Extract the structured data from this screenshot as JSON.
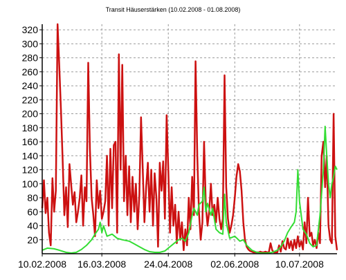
{
  "chart_data": {
    "type": "line",
    "title": "Transit Häuserstärken (10.02.2008 - 01.08.2008)",
    "xlabel": "",
    "ylabel": "",
    "xlim": [
      "2008-02-10",
      "2008-08-01"
    ],
    "ylim": [
      0,
      328
    ],
    "grid": true,
    "legend": "none",
    "y_ticks": [
      20,
      40,
      60,
      80,
      100,
      120,
      140,
      160,
      180,
      200,
      220,
      240,
      260,
      280,
      300,
      320
    ],
    "x_ticks": [
      "10.02.2008",
      "16.03.2008",
      "24.04.2008",
      "02.06.2008",
      "10.07.2008"
    ],
    "x_tick_dates": [
      "2008-02-10",
      "2008-03-16",
      "2008-04-24",
      "2008-06-02",
      "2008-07-10"
    ],
    "series": [
      {
        "color": "#cc1111",
        "points": [
          [
            "2008-02-10",
            65
          ],
          [
            "2008-02-11",
            105
          ],
          [
            "2008-02-12",
            58
          ],
          [
            "2008-02-13",
            80
          ],
          [
            "2008-02-14",
            30
          ],
          [
            "2008-02-15",
            12
          ],
          [
            "2008-02-16",
            108
          ],
          [
            "2008-02-17",
            60
          ],
          [
            "2008-02-18",
            90
          ],
          [
            "2008-02-19",
            328
          ],
          [
            "2008-02-20",
            270
          ],
          [
            "2008-02-21",
            205
          ],
          [
            "2008-02-22",
            135
          ],
          [
            "2008-02-23",
            55
          ],
          [
            "2008-02-24",
            95
          ],
          [
            "2008-02-25",
            38
          ],
          [
            "2008-02-26",
            128
          ],
          [
            "2008-02-27",
            98
          ],
          [
            "2008-02-28",
            70
          ],
          [
            "2008-02-29",
            88
          ],
          [
            "2008-03-01",
            45
          ],
          [
            "2008-03-02",
            60
          ],
          [
            "2008-03-03",
            80
          ],
          [
            "2008-03-04",
            112
          ],
          [
            "2008-03-05",
            40
          ],
          [
            "2008-03-06",
            95
          ],
          [
            "2008-03-07",
            75
          ],
          [
            "2008-03-08",
            273
          ],
          [
            "2008-03-09",
            150
          ],
          [
            "2008-03-10",
            80
          ],
          [
            "2008-03-11",
            55
          ],
          [
            "2008-03-12",
            25
          ],
          [
            "2008-03-13",
            105
          ],
          [
            "2008-03-14",
            65
          ],
          [
            "2008-03-15",
            90
          ],
          [
            "2008-03-16",
            50
          ],
          [
            "2008-03-17",
            60
          ],
          [
            "2008-03-18",
            75
          ],
          [
            "2008-03-19",
            140
          ],
          [
            "2008-03-20",
            40
          ],
          [
            "2008-03-21",
            150
          ],
          [
            "2008-03-22",
            65
          ],
          [
            "2008-03-23",
            155
          ],
          [
            "2008-03-24",
            160
          ],
          [
            "2008-03-25",
            30
          ],
          [
            "2008-03-26",
            285
          ],
          [
            "2008-03-27",
            120
          ],
          [
            "2008-03-28",
            270
          ],
          [
            "2008-03-29",
            75
          ],
          [
            "2008-03-30",
            140
          ],
          [
            "2008-03-31",
            55
          ],
          [
            "2008-04-01",
            125
          ],
          [
            "2008-04-02",
            45
          ],
          [
            "2008-04-03",
            110
          ],
          [
            "2008-04-04",
            60
          ],
          [
            "2008-04-05",
            100
          ],
          [
            "2008-04-06",
            35
          ],
          [
            "2008-04-07",
            85
          ],
          [
            "2008-04-08",
            195
          ],
          [
            "2008-04-09",
            120
          ],
          [
            "2008-04-10",
            45
          ],
          [
            "2008-04-11",
            95
          ],
          [
            "2008-04-12",
            130
          ],
          [
            "2008-04-13",
            60
          ],
          [
            "2008-04-14",
            120
          ],
          [
            "2008-04-15",
            40
          ],
          [
            "2008-04-16",
            115
          ],
          [
            "2008-04-17",
            80
          ],
          [
            "2008-04-18",
            10
          ],
          [
            "2008-04-19",
            130
          ],
          [
            "2008-04-20",
            90
          ],
          [
            "2008-04-21",
            132
          ],
          [
            "2008-04-22",
            50
          ],
          [
            "2008-04-23",
            198
          ],
          [
            "2008-04-24",
            120
          ],
          [
            "2008-04-25",
            30
          ],
          [
            "2008-04-26",
            95
          ],
          [
            "2008-04-27",
            40
          ],
          [
            "2008-04-28",
            70
          ],
          [
            "2008-04-29",
            15
          ],
          [
            "2008-04-30",
            60
          ],
          [
            "2008-05-01",
            20
          ],
          [
            "2008-05-02",
            45
          ],
          [
            "2008-05-03",
            5
          ],
          [
            "2008-05-04",
            35
          ],
          [
            "2008-05-05",
            12
          ],
          [
            "2008-05-06",
            80
          ],
          [
            "2008-05-07",
            35
          ],
          [
            "2008-05-08",
            110
          ],
          [
            "2008-05-09",
            55
          ],
          [
            "2008-05-10",
            275
          ],
          [
            "2008-05-11",
            140
          ],
          [
            "2008-05-12",
            60
          ],
          [
            "2008-05-13",
            20
          ],
          [
            "2008-05-14",
            45
          ],
          [
            "2008-05-15",
            160
          ],
          [
            "2008-05-16",
            70
          ],
          [
            "2008-05-17",
            40
          ],
          [
            "2008-05-18",
            60
          ],
          [
            "2008-05-19",
            100
          ],
          [
            "2008-05-20",
            55
          ],
          [
            "2008-05-21",
            70
          ],
          [
            "2008-05-22",
            45
          ],
          [
            "2008-05-23",
            80
          ],
          [
            "2008-05-24",
            50
          ],
          [
            "2008-05-25",
            35
          ],
          [
            "2008-05-26",
            50
          ],
          [
            "2008-05-27",
            255
          ],
          [
            "2008-05-28",
            95
          ],
          [
            "2008-05-29",
            50
          ],
          [
            "2008-05-30",
            30
          ],
          [
            "2008-05-31",
            40
          ],
          [
            "2008-06-01",
            55
          ],
          [
            "2008-06-02",
            80
          ],
          [
            "2008-06-03",
            110
          ],
          [
            "2008-06-04",
            128
          ],
          [
            "2008-06-05",
            118
          ],
          [
            "2008-06-06",
            90
          ],
          [
            "2008-06-07",
            45
          ],
          [
            "2008-06-08",
            20
          ],
          [
            "2008-06-09",
            10
          ],
          [
            "2008-06-10",
            6
          ],
          [
            "2008-06-11",
            4
          ],
          [
            "2008-06-12",
            3
          ],
          [
            "2008-06-13",
            2
          ],
          [
            "2008-06-14",
            2
          ],
          [
            "2008-06-15",
            2
          ],
          [
            "2008-06-16",
            2
          ],
          [
            "2008-06-17",
            3
          ],
          [
            "2008-06-18",
            2
          ],
          [
            "2008-06-19",
            2
          ],
          [
            "2008-06-20",
            3
          ],
          [
            "2008-06-21",
            2
          ],
          [
            "2008-06-22",
            2
          ],
          [
            "2008-06-23",
            15
          ],
          [
            "2008-06-24",
            5
          ],
          [
            "2008-06-25",
            2
          ],
          [
            "2008-06-26",
            2
          ],
          [
            "2008-06-27",
            2
          ],
          [
            "2008-06-28",
            12
          ],
          [
            "2008-06-29",
            3
          ],
          [
            "2008-06-30",
            18
          ],
          [
            "2008-07-01",
            8
          ],
          [
            "2008-07-02",
            6
          ],
          [
            "2008-07-03",
            22
          ],
          [
            "2008-07-04",
            8
          ],
          [
            "2008-07-05",
            18
          ],
          [
            "2008-07-06",
            5
          ],
          [
            "2008-07-07",
            20
          ],
          [
            "2008-07-08",
            8
          ],
          [
            "2008-07-09",
            25
          ],
          [
            "2008-07-10",
            10
          ],
          [
            "2008-07-11",
            18
          ],
          [
            "2008-07-12",
            6
          ],
          [
            "2008-07-13",
            45
          ],
          [
            "2008-07-14",
            15
          ],
          [
            "2008-07-15",
            80
          ],
          [
            "2008-07-16",
            25
          ],
          [
            "2008-07-17",
            30
          ],
          [
            "2008-07-18",
            12
          ],
          [
            "2008-07-19",
            20
          ],
          [
            "2008-07-20",
            8
          ],
          [
            "2008-07-21",
            30
          ],
          [
            "2008-07-22",
            15
          ],
          [
            "2008-07-23",
            140
          ],
          [
            "2008-07-24",
            160
          ],
          [
            "2008-07-25",
            95
          ],
          [
            "2008-07-26",
            140
          ],
          [
            "2008-07-27",
            40
          ],
          [
            "2008-07-28",
            20
          ],
          [
            "2008-07-29",
            15
          ],
          [
            "2008-07-30",
            200
          ],
          [
            "2008-07-31",
            25
          ],
          [
            "2008-08-01",
            5
          ]
        ]
      },
      {
        "color": "#33dd33",
        "points": [
          [
            "2008-02-10",
            5
          ],
          [
            "2008-02-13",
            8
          ],
          [
            "2008-02-17",
            7
          ],
          [
            "2008-02-20",
            5
          ],
          [
            "2008-02-24",
            2
          ],
          [
            "2008-02-27",
            1
          ],
          [
            "2008-03-01",
            2
          ],
          [
            "2008-03-04",
            6
          ],
          [
            "2008-03-07",
            12
          ],
          [
            "2008-03-10",
            20
          ],
          [
            "2008-03-12",
            28
          ],
          [
            "2008-03-14",
            35
          ],
          [
            "2008-03-15",
            45
          ],
          [
            "2008-03-16",
            30
          ],
          [
            "2008-03-17",
            40
          ],
          [
            "2008-03-19",
            25
          ],
          [
            "2008-03-22",
            28
          ],
          [
            "2008-03-25",
            22
          ],
          [
            "2008-03-28",
            20
          ],
          [
            "2008-04-01",
            18
          ],
          [
            "2008-04-04",
            14
          ],
          [
            "2008-04-07",
            10
          ],
          [
            "2008-04-10",
            6
          ],
          [
            "2008-04-13",
            3
          ],
          [
            "2008-04-16",
            2
          ],
          [
            "2008-04-19",
            2
          ],
          [
            "2008-04-22",
            4
          ],
          [
            "2008-04-24",
            8
          ],
          [
            "2008-04-27",
            14
          ],
          [
            "2008-04-30",
            20
          ],
          [
            "2008-05-02",
            22
          ],
          [
            "2008-05-04",
            18
          ],
          [
            "2008-05-06",
            30
          ],
          [
            "2008-05-08",
            55
          ],
          [
            "2008-05-09",
            65
          ],
          [
            "2008-05-11",
            55
          ],
          [
            "2008-05-12",
            70
          ],
          [
            "2008-05-14",
            75
          ],
          [
            "2008-05-15",
            95
          ],
          [
            "2008-05-16",
            60
          ],
          [
            "2008-05-17",
            72
          ],
          [
            "2008-05-19",
            55
          ],
          [
            "2008-05-20",
            65
          ],
          [
            "2008-05-22",
            35
          ],
          [
            "2008-05-24",
            30
          ],
          [
            "2008-05-26",
            28
          ],
          [
            "2008-05-27",
            85
          ],
          [
            "2008-05-28",
            45
          ],
          [
            "2008-05-30",
            22
          ],
          [
            "2008-06-02",
            25
          ],
          [
            "2008-06-05",
            18
          ],
          [
            "2008-06-07",
            20
          ],
          [
            "2008-06-09",
            12
          ],
          [
            "2008-06-12",
            5
          ],
          [
            "2008-06-15",
            2
          ],
          [
            "2008-06-18",
            1
          ],
          [
            "2008-06-21",
            1
          ],
          [
            "2008-06-24",
            2
          ],
          [
            "2008-06-27",
            5
          ],
          [
            "2008-06-29",
            10
          ],
          [
            "2008-07-01",
            18
          ],
          [
            "2008-07-03",
            30
          ],
          [
            "2008-07-05",
            38
          ],
          [
            "2008-07-07",
            45
          ],
          [
            "2008-07-08",
            60
          ],
          [
            "2008-07-09",
            120
          ],
          [
            "2008-07-10",
            75
          ],
          [
            "2008-07-12",
            35
          ],
          [
            "2008-07-14",
            28
          ],
          [
            "2008-07-16",
            15
          ],
          [
            "2008-07-18",
            10
          ],
          [
            "2008-07-20",
            12
          ],
          [
            "2008-07-22",
            55
          ],
          [
            "2008-07-24",
            120
          ],
          [
            "2008-07-25",
            182
          ],
          [
            "2008-07-26",
            140
          ],
          [
            "2008-07-27",
            100
          ],
          [
            "2008-07-28",
            80
          ],
          [
            "2008-07-29",
            100
          ],
          [
            "2008-07-30",
            110
          ],
          [
            "2008-07-31",
            125
          ],
          [
            "2008-08-01",
            120
          ]
        ]
      }
    ]
  }
}
